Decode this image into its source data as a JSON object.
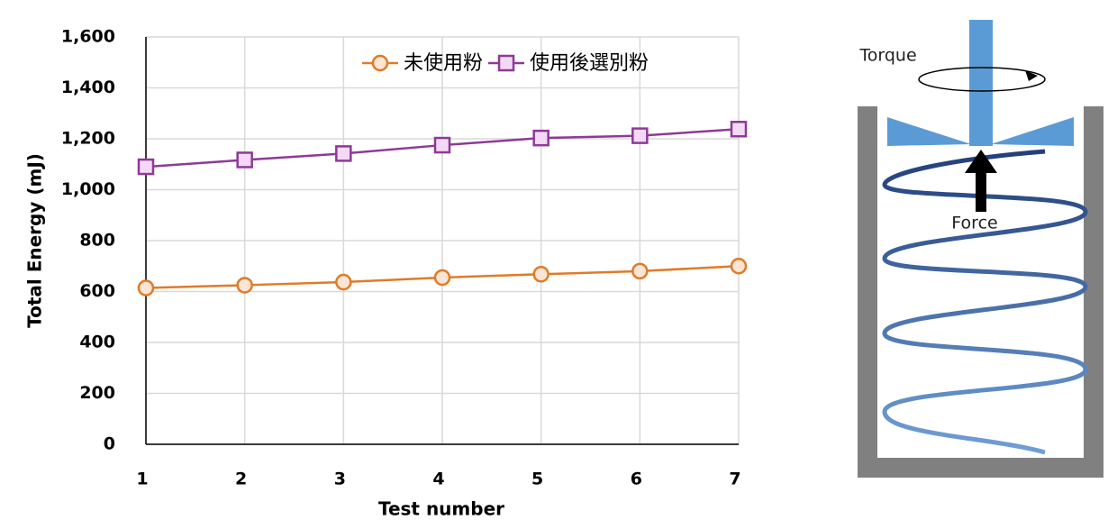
{
  "chart_data": {
    "type": "line",
    "xlabel": "Test number",
    "ylabel": "Total Energy (mJ)",
    "x": [
      1,
      2,
      3,
      4,
      5,
      6,
      7
    ],
    "xlim": [
      1,
      7
    ],
    "xticks": [
      1,
      2,
      3,
      4,
      5,
      6,
      7
    ],
    "ylim": [
      0,
      1600
    ],
    "yticks": [
      0,
      200,
      400,
      600,
      800,
      {
        "value": 1000,
        "label": "1,000"
      },
      {
        "value": 1200,
        "label": "1,200"
      },
      {
        "value": 1400,
        "label": "1,400"
      },
      {
        "value": 1600,
        "label": "1,600"
      }
    ],
    "grid": true,
    "legend": "upper right",
    "series": [
      {
        "name": "未使用粉",
        "color": "#e07b28",
        "marker": "circle",
        "values": [
          614,
          625,
          637,
          655,
          668,
          680,
          700
        ]
      },
      {
        "name": "使用後選別粉",
        "color": "#8e3a96",
        "marker": "square",
        "values": [
          1090,
          1117,
          1142,
          1175,
          1203,
          1212,
          1238
        ]
      }
    ]
  },
  "diagram": {
    "torque_label": "Torque",
    "force_label": "Force"
  }
}
